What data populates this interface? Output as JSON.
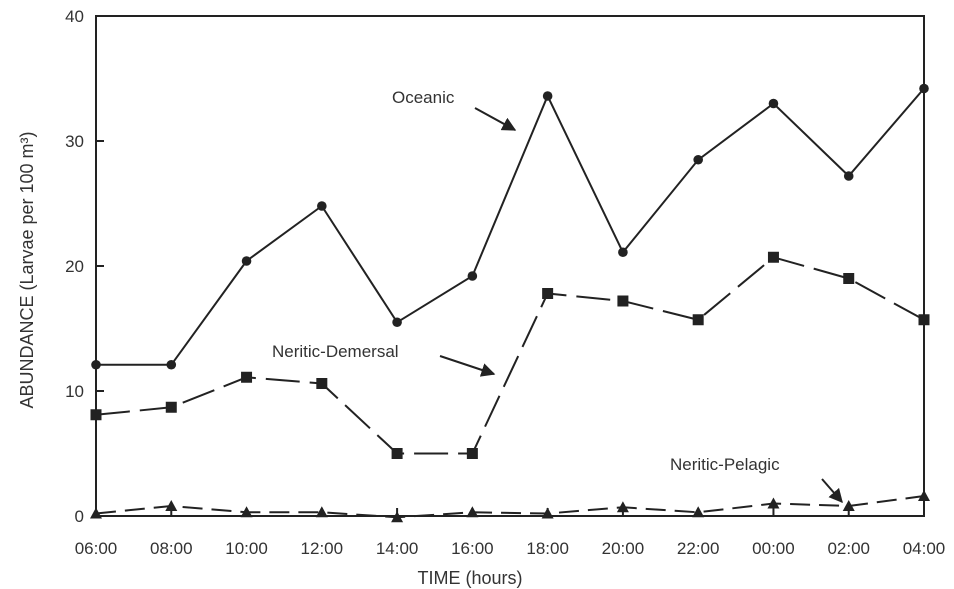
{
  "chart_data": {
    "type": "line",
    "title": "",
    "xlabel": "TIME (hours)",
    "ylabel": "ABUNDANCE (Larvae per 100 m³)",
    "ylim": [
      0,
      40
    ],
    "yticks": [
      "0",
      "10",
      "20",
      "30",
      "40"
    ],
    "categories": [
      "06:00",
      "08:00",
      "10:00",
      "12:00",
      "14:00",
      "16:00",
      "18:00",
      "20:00",
      "22:00",
      "00:00",
      "02:00",
      "04:00"
    ],
    "grid": false,
    "legend": "none",
    "series": [
      {
        "name": "Oceanic",
        "marker": "circle",
        "line_style": "solid",
        "values": [
          12.1,
          12.1,
          20.4,
          24.8,
          15.5,
          19.2,
          33.6,
          21.1,
          28.5,
          33.0,
          27.2,
          34.2
        ]
      },
      {
        "name": "Neritic-Demersal",
        "marker": "square",
        "line_style": "long-dash",
        "values": [
          8.1,
          8.7,
          11.1,
          10.6,
          5.0,
          5.0,
          17.8,
          17.2,
          15.7,
          20.7,
          19.0,
          15.7
        ]
      },
      {
        "name": "Neritic-Pelagic",
        "marker": "triangle",
        "line_style": "dash",
        "values": [
          0.2,
          0.8,
          0.3,
          0.3,
          -0.1,
          0.3,
          0.2,
          0.7,
          0.3,
          1.0,
          0.8,
          1.6
        ]
      }
    ]
  },
  "colors": {
    "ink": "#222222",
    "background": "#ffffff"
  }
}
